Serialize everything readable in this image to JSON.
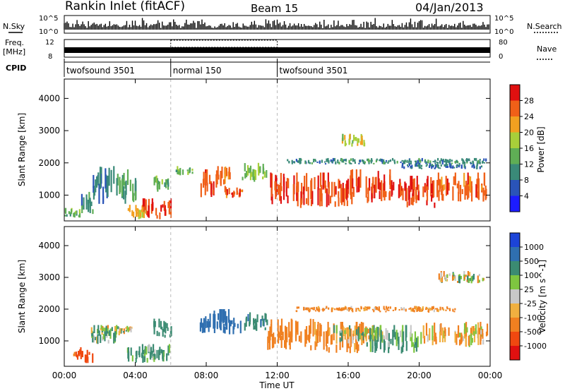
{
  "header": {
    "title": "Rankin Inlet (fitACF)",
    "beam": "Beam 15",
    "date": "04/Jan/2013"
  },
  "side_labels": {
    "nsky": "N.Sky",
    "nsearch": "N.Search",
    "freq": "Freq.",
    "freq_unit": "[MHz]",
    "nave": "Nave",
    "cpid": "CPID"
  },
  "noise_axis": {
    "top": "10^5",
    "bottom": "10^0"
  },
  "freq_axis": {
    "left_top": "12",
    "left_bottom": "8",
    "right_top": "80",
    "right_bottom": "0"
  },
  "cpid_segments": [
    {
      "label": "twofsound 3501",
      "start_h": 0,
      "end_h": 6
    },
    {
      "label": "normal 150",
      "start_h": 6,
      "end_h": 12
    },
    {
      "label": "twofsound 3501",
      "start_h": 12,
      "end_h": 24
    }
  ],
  "axes": {
    "xlabel": "Time UT",
    "ylabel": "Slant Range [km]",
    "x_ticks": [
      "00:00",
      "04:00",
      "08:00",
      "12:00",
      "16:00",
      "20:00",
      "00:00"
    ],
    "y_ticks": [
      "1000",
      "2000",
      "3000",
      "4000"
    ]
  },
  "power_scale": {
    "label": "Power [dB]",
    "ticks": [
      "4",
      "8",
      "12",
      "16",
      "20",
      "24",
      "28"
    ],
    "colors": [
      "#1c1cff",
      "#2a54b8",
      "#3a8a78",
      "#5fae55",
      "#a8cf3a",
      "#f2a020",
      "#f06018",
      "#e01010"
    ]
  },
  "velocity_scale": {
    "label": "Velocity [m s^-1]",
    "ticks": [
      "1000",
      "500",
      "100",
      "25",
      "-25",
      "-100",
      "-500",
      "-1000"
    ],
    "colors": [
      "#1c44d8",
      "#2f6fb0",
      "#3b8b72",
      "#7ec640",
      "#c8c8c8",
      "#f0b040",
      "#f08020",
      "#f04810",
      "#e01010"
    ]
  },
  "chart_data": [
    {
      "type": "heatmap",
      "title": "Power",
      "xlabel": "Time UT",
      "ylabel": "Slant Range [km]",
      "xlim": [
        0,
        24
      ],
      "ylim": [
        200,
        4600
      ],
      "colorbar": {
        "label": "Power [dB]",
        "range": [
          0,
          32
        ]
      },
      "regions": [
        {
          "t": [
            0.0,
            0.9
          ],
          "r": [
            300,
            600
          ],
          "p": 14
        },
        {
          "t": [
            0.9,
            1.6
          ],
          "r": [
            400,
            1100
          ],
          "p": 10
        },
        {
          "t": [
            1.6,
            2.8
          ],
          "r": [
            700,
            1900
          ],
          "p": 8
        },
        {
          "t": [
            2.8,
            4.0
          ],
          "r": [
            700,
            1800
          ],
          "p": 12
        },
        {
          "t": [
            3.4,
            4.6
          ],
          "r": [
            250,
            700
          ],
          "p": 20
        },
        {
          "t": [
            4.4,
            6.0
          ],
          "r": [
            250,
            900
          ],
          "p": 27
        },
        {
          "t": [
            5.0,
            6.0
          ],
          "r": [
            1100,
            1700
          ],
          "p": 14
        },
        {
          "t": [
            6.2,
            7.2
          ],
          "r": [
            1600,
            1900
          ],
          "p": 14
        },
        {
          "t": [
            7.6,
            8.4
          ],
          "r": [
            800,
            1800
          ],
          "p": 27
        },
        {
          "t": [
            8.4,
            9.4
          ],
          "r": [
            1200,
            1900
          ],
          "p": 24
        },
        {
          "t": [
            9.0,
            10.0
          ],
          "r": [
            900,
            1300
          ],
          "p": 26
        },
        {
          "t": [
            10.0,
            11.4
          ],
          "r": [
            1400,
            2000
          ],
          "p": 16
        },
        {
          "t": [
            11.4,
            13.0
          ],
          "r": [
            700,
            1700
          ],
          "p": 27
        },
        {
          "t": [
            13.0,
            16.0
          ],
          "r": [
            600,
            1700
          ],
          "p": 27
        },
        {
          "t": [
            16.0,
            18.5
          ],
          "r": [
            700,
            1800
          ],
          "p": 27
        },
        {
          "t": [
            18.5,
            21.0
          ],
          "r": [
            600,
            1600
          ],
          "p": 28
        },
        {
          "t": [
            21.0,
            23.8
          ],
          "r": [
            800,
            1700
          ],
          "p": 26
        },
        {
          "t": [
            12.5,
            23.8
          ],
          "r": [
            1950,
            2150
          ],
          "p": 10
        },
        {
          "t": [
            15.5,
            17.0
          ],
          "r": [
            2500,
            2900
          ],
          "p": 18
        },
        {
          "t": [
            19.0,
            23.5
          ],
          "r": [
            1800,
            2000
          ],
          "p": 8
        }
      ]
    },
    {
      "type": "heatmap",
      "title": "Velocity",
      "xlabel": "Time UT",
      "ylabel": "Slant Range [km]",
      "xlim": [
        0,
        24
      ],
      "ylim": [
        200,
        4600
      ],
      "colorbar": {
        "label": "Velocity [m s^-1]",
        "range": [
          -1000,
          1000
        ]
      },
      "regions": [
        {
          "t": [
            0.5,
            1.6
          ],
          "r": [
            300,
            800
          ],
          "v": -600
        },
        {
          "t": [
            1.5,
            3.2
          ],
          "r": [
            900,
            1500
          ],
          "v": 100
        },
        {
          "t": [
            2.0,
            3.8
          ],
          "r": [
            1200,
            1500
          ],
          "v": 0
        },
        {
          "t": [
            3.4,
            6.0
          ],
          "r": [
            300,
            900
          ],
          "v": 200
        },
        {
          "t": [
            5.0,
            6.0
          ],
          "r": [
            1100,
            1700
          ],
          "v": 300
        },
        {
          "t": [
            7.6,
            10.0
          ],
          "r": [
            1200,
            2000
          ],
          "v": 800
        },
        {
          "t": [
            10.0,
            11.4
          ],
          "r": [
            1300,
            1900
          ],
          "v": 400
        },
        {
          "t": [
            11.4,
            14.0
          ],
          "r": [
            700,
            1700
          ],
          "v": -300
        },
        {
          "t": [
            14.0,
            17.0
          ],
          "r": [
            600,
            1600
          ],
          "v": -200
        },
        {
          "t": [
            15.0,
            18.0
          ],
          "r": [
            900,
            1500
          ],
          "v": 0
        },
        {
          "t": [
            17.0,
            20.0
          ],
          "r": [
            600,
            1500
          ],
          "v": 200
        },
        {
          "t": [
            20.0,
            23.8
          ],
          "r": [
            800,
            1600
          ],
          "v": -100
        },
        {
          "t": [
            13.0,
            22.0
          ],
          "r": [
            1900,
            2100
          ],
          "v": -200
        },
        {
          "t": [
            21.0,
            23.8
          ],
          "r": [
            2800,
            3200
          ],
          "v": 0
        }
      ]
    }
  ]
}
